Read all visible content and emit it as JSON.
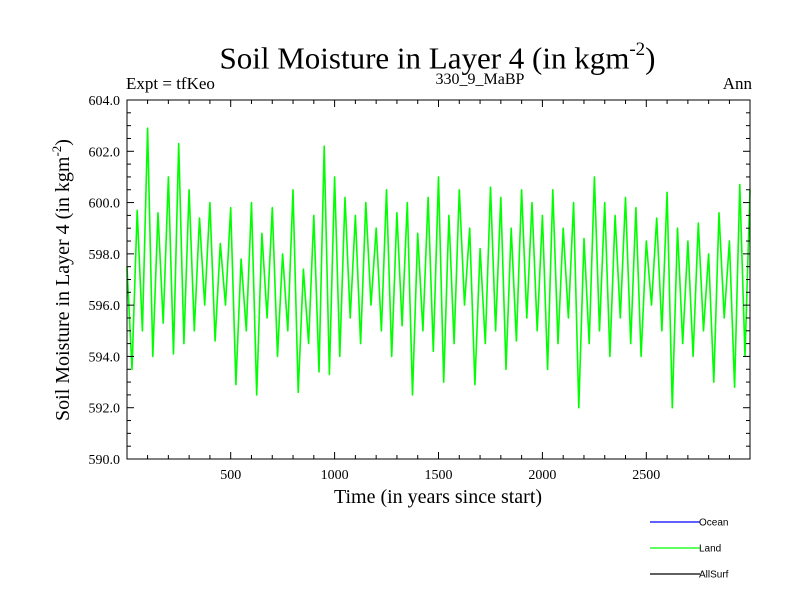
{
  "chart_data": {
    "type": "line",
    "title": "Soil Moisture in Layer 4 (in kgm",
    "title_sup": "-2",
    "title_end": ")",
    "subtitle_left": "Expt = tfKeo",
    "subtitle_center": "330_9_MaBP",
    "subtitle_right": "Ann",
    "xlabel": "Time (in years since start)",
    "ylabel": "Soil Moisture in Layer 4 (in kgm",
    "ylabel_sup": "-2",
    "ylabel_end": ")",
    "xlim": [
      1,
      2999
    ],
    "ylim": [
      590.0,
      604.0
    ],
    "xticks": [
      500,
      1000,
      1500,
      2000,
      2500
    ],
    "xtick_labels": [
      "500",
      "1000",
      "1500",
      "2000",
      "2500"
    ],
    "yticks": [
      590.0,
      592.0,
      594.0,
      596.0,
      598.0,
      600.0,
      602.0,
      604.0
    ],
    "ytick_labels": [
      "590.0",
      "592.0",
      "594.0",
      "596.0",
      "598.0",
      "600.0",
      "602.0",
      "604.0"
    ],
    "grid": false,
    "legend_position": "bottom-right, below plot",
    "series": [
      {
        "name": "Ocean",
        "color": "#0000ff",
        "x": [],
        "y": []
      },
      {
        "name": "Land",
        "color": "#00ff00",
        "x": [
          1,
          25,
          50,
          75,
          100,
          125,
          150,
          175,
          200,
          225,
          250,
          275,
          300,
          325,
          350,
          375,
          400,
          425,
          450,
          475,
          500,
          525,
          550,
          575,
          600,
          625,
          650,
          675,
          700,
          725,
          750,
          775,
          800,
          825,
          850,
          875,
          900,
          925,
          950,
          975,
          1000,
          1025,
          1050,
          1075,
          1100,
          1125,
          1150,
          1175,
          1200,
          1225,
          1250,
          1275,
          1300,
          1325,
          1350,
          1375,
          1400,
          1425,
          1450,
          1475,
          1500,
          1525,
          1550,
          1575,
          1600,
          1625,
          1650,
          1675,
          1700,
          1725,
          1750,
          1775,
          1800,
          1825,
          1850,
          1875,
          1900,
          1925,
          1950,
          1975,
          2000,
          2025,
          2050,
          2075,
          2100,
          2125,
          2150,
          2175,
          2200,
          2225,
          2250,
          2275,
          2300,
          2325,
          2350,
          2375,
          2400,
          2425,
          2450,
          2475,
          2500,
          2525,
          2550,
          2575,
          2600,
          2625,
          2650,
          2675,
          2700,
          2725,
          2750,
          2775,
          2800,
          2825,
          2850,
          2875,
          2900,
          2925,
          2950,
          2975,
          2999
        ],
        "y": [
          597.5,
          593.5,
          599.7,
          595.0,
          602.9,
          594.0,
          599.6,
          595.3,
          601.0,
          594.1,
          602.3,
          594.5,
          600.5,
          595.0,
          599.4,
          596.0,
          600.0,
          594.6,
          598.4,
          596.0,
          599.8,
          592.9,
          597.8,
          595.0,
          600.0,
          592.5,
          598.8,
          595.5,
          599.8,
          594.0,
          598.0,
          595.0,
          600.5,
          592.6,
          597.4,
          594.5,
          599.5,
          593.4,
          602.2,
          593.3,
          601.0,
          594.0,
          600.2,
          595.5,
          599.5,
          594.5,
          600.0,
          596.0,
          599.0,
          595.0,
          600.5,
          594.0,
          599.6,
          595.2,
          600.0,
          592.5,
          598.8,
          595.0,
          600.2,
          594.2,
          601.0,
          593.0,
          599.5,
          594.5,
          600.5,
          596.0,
          599.0,
          592.9,
          598.2,
          594.5,
          600.6,
          595.0,
          600.2,
          593.5,
          599.0,
          594.6,
          600.5,
          595.5,
          600.0,
          595.0,
          599.5,
          593.5,
          600.5,
          594.5,
          599.0,
          595.5,
          600.0,
          592.0,
          598.6,
          594.5,
          601.0,
          595.0,
          600.0,
          594.0,
          599.5,
          595.5,
          600.2,
          594.5,
          599.8,
          594.0,
          598.5,
          596.0,
          599.4,
          595.0,
          600.4,
          592.0,
          599.0,
          594.5,
          598.5,
          594.0,
          599.2,
          595.0,
          598.0,
          593.0,
          599.6,
          595.5,
          598.5,
          592.8,
          600.7,
          594.0,
          600.5
        ]
      },
      {
        "name": "AllSurf",
        "color": "#000000",
        "x": [],
        "y": []
      }
    ]
  }
}
